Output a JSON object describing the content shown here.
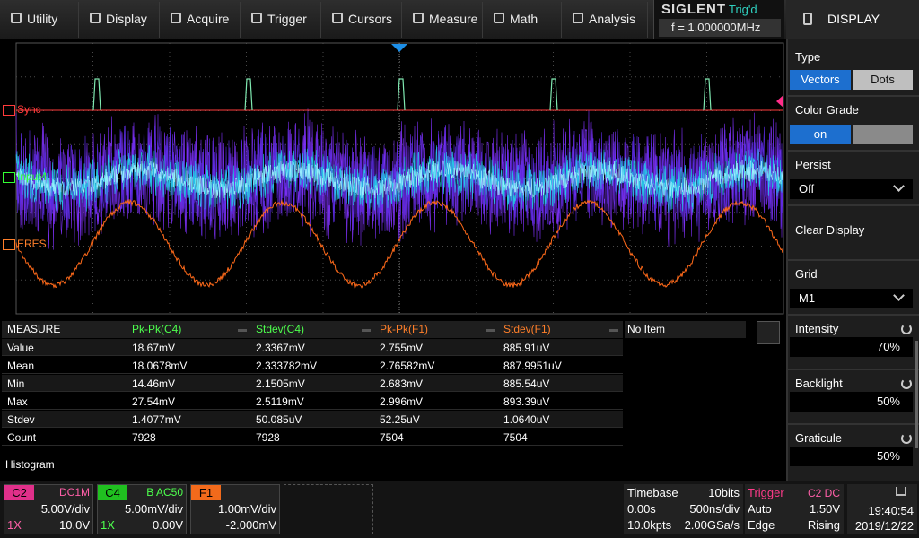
{
  "menu": [
    "Utility",
    "Display",
    "Acquire",
    "Trigger",
    "Cursors",
    "Measure",
    "Math",
    "Analysis"
  ],
  "status": {
    "brand": "SIGLENT",
    "trigger_state": "Trig'd",
    "frequency": "f = 1.000000MHz"
  },
  "waveform_labels": [
    "Sync",
    "Input4",
    "ERES"
  ],
  "measure": {
    "title": "MEASURE",
    "columns": [
      "Pk-Pk(C4)",
      "Stdev(C4)",
      "Pk-Pk(F1)",
      "Stdev(F1)"
    ],
    "empty_slot": "No Item",
    "row_labels": [
      "Value",
      "Mean",
      "Min",
      "Max",
      "Stdev",
      "Count"
    ],
    "rows": [
      [
        "18.67mV",
        "2.3367mV",
        "2.755mV",
        "885.91uV"
      ],
      [
        "18.0678mV",
        "2.333782mV",
        "2.76582mV",
        "887.9951uV"
      ],
      [
        "14.46mV",
        "2.1505mV",
        "2.683mV",
        "885.54uV"
      ],
      [
        "27.54mV",
        "2.5119mV",
        "2.996mV",
        "893.39uV"
      ],
      [
        "1.4077mV",
        "50.085uV",
        "52.25uV",
        "1.0640uV"
      ],
      [
        "7928",
        "7928",
        "7504",
        "7504"
      ]
    ],
    "histogram_label": "Histogram"
  },
  "channels": [
    {
      "name": "C2",
      "coupling": "DC1M",
      "scale": "5.00V/div",
      "probe": "1X",
      "offset": "10.0V"
    },
    {
      "name": "C4",
      "coupling": "B AC50",
      "scale": "5.00mV/div",
      "probe": "1X",
      "offset": "0.00V"
    },
    {
      "name": "F1",
      "scale": "1.00mV/div",
      "offset": "-2.000mV"
    }
  ],
  "timebase": {
    "title": "Timebase",
    "resolution": "10bits",
    "delay": "0.00s",
    "scale": "500ns/div",
    "memory": "10.0kpts",
    "sample_rate": "2.00GSa/s"
  },
  "trigger": {
    "title": "Trigger",
    "source": "C2 DC",
    "mode": "Auto",
    "level": "1.50V",
    "type": "Edge",
    "slope": "Rising"
  },
  "clock": {
    "time": "19:40:54",
    "date": "2019/12/22"
  },
  "side_panel": {
    "title": "DISPLAY",
    "type": {
      "label": "Type",
      "options": [
        "Vectors",
        "Dots"
      ]
    },
    "color_grade": {
      "label": "Color Grade",
      "value": "on"
    },
    "persist": {
      "label": "Persist",
      "value": "Off"
    },
    "clear": "Clear Display",
    "grid": {
      "label": "Grid",
      "value": "M1"
    },
    "intensity": {
      "label": "Intensity",
      "value": "70%"
    },
    "backlight": {
      "label": "Backlight",
      "value": "50%"
    },
    "graticule": {
      "label": "Graticule",
      "value": "50%"
    }
  }
}
